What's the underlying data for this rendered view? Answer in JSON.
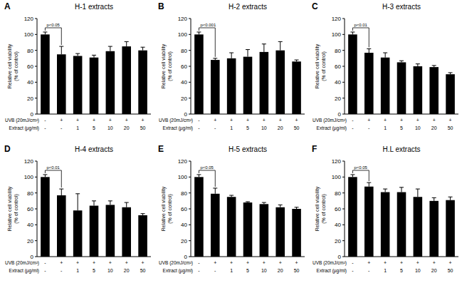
{
  "chart_data": [
    {
      "type": "bar",
      "panel": "A",
      "title": "H-1 extracts",
      "y_label": [
        "Relative cell viability",
        "(% of control)"
      ],
      "x_rows": [
        {
          "label": "UVB (20mJ/cm²)",
          "values": [
            "-",
            "+",
            "+",
            "+",
            "+",
            "+",
            "+"
          ]
        },
        {
          "label": "Extract (µg/ml)",
          "values": [
            "-",
            "-",
            "1",
            "5",
            "10",
            "20",
            "50"
          ]
        }
      ],
      "values": [
        100,
        75,
        73,
        71,
        79,
        85,
        80
      ],
      "errors": [
        3,
        10,
        3,
        3,
        6,
        6,
        4
      ],
      "color": "#000000",
      "ylim": [
        0,
        120
      ],
      "yticks": [
        0,
        20,
        40,
        60,
        80,
        100,
        120
      ],
      "grid": false,
      "annotations": [
        {
          "text": "p<0.05",
          "from": 0,
          "to": 1
        }
      ]
    },
    {
      "type": "bar",
      "panel": "B",
      "title": "H-2 extracts",
      "y_label": [
        "Relative cell viability",
        "(% of control)"
      ],
      "x_rows": [
        {
          "label": "UVB (20mJ/cm²)",
          "values": [
            "-",
            "+",
            "+",
            "+",
            "+",
            "+",
            "+"
          ]
        },
        {
          "label": "Extract (µg/ml)",
          "values": [
            "-",
            "-",
            "1",
            "5",
            "10",
            "20",
            "50"
          ]
        }
      ],
      "values": [
        100,
        68,
        70,
        72,
        78,
        80,
        66
      ],
      "errors": [
        3,
        2,
        7,
        9,
        10,
        11,
        2
      ],
      "color": "#000000",
      "ylim": [
        0,
        120
      ],
      "yticks": [
        0,
        20,
        40,
        60,
        80,
        100,
        120
      ],
      "grid": false,
      "annotations": [
        {
          "text": "p<0.001",
          "from": 0,
          "to": 1
        }
      ]
    },
    {
      "type": "bar",
      "panel": "C",
      "title": "H-3 extracts",
      "y_label": [
        "Relative cell viability",
        "(% of control)"
      ],
      "x_rows": [
        {
          "label": "UVB (20mJ/cm²)",
          "values": [
            "-",
            "+",
            "+",
            "+",
            "+",
            "+",
            "+"
          ]
        },
        {
          "label": "Extract (µg/ml)",
          "values": [
            "-",
            "-",
            "1",
            "5",
            "10",
            "20",
            "50"
          ]
        }
      ],
      "values": [
        100,
        77,
        71,
        65,
        60,
        59,
        50
      ],
      "errors": [
        3,
        5,
        6,
        2,
        3,
        2,
        2
      ],
      "color": "#000000",
      "ylim": [
        0,
        120
      ],
      "yticks": [
        0,
        20,
        40,
        60,
        80,
        100,
        120
      ],
      "grid": false,
      "annotations": [
        {
          "text": "p<0.01",
          "from": 0,
          "to": 1
        }
      ]
    },
    {
      "type": "bar",
      "panel": "D",
      "title": "H-4 extracts",
      "y_label": [
        "Relative cell viability",
        "(% of control)"
      ],
      "x_rows": [
        {
          "label": "UVB (20mJ/cm²)",
          "values": [
            "-",
            "+",
            "+",
            "+",
            "+",
            "+",
            "+"
          ]
        },
        {
          "label": "Extract (µg/ml)",
          "values": [
            "-",
            "-",
            "1",
            "5",
            "10",
            "20",
            "50"
          ]
        }
      ],
      "values": [
        100,
        77,
        58,
        64,
        65,
        62,
        52
      ],
      "errors": [
        3,
        8,
        21,
        6,
        5,
        6,
        2
      ],
      "color": "#000000",
      "ylim": [
        0,
        120
      ],
      "yticks": [
        0,
        20,
        40,
        60,
        80,
        100,
        120
      ],
      "grid": false,
      "annotations": [
        {
          "text": "p<0.01",
          "from": 0,
          "to": 1
        }
      ]
    },
    {
      "type": "bar",
      "panel": "E",
      "title": "H-5 extracts",
      "y_label": [
        "Relative cell viability",
        "(% of control)"
      ],
      "x_rows": [
        {
          "label": "UVB (20mJ/cm²)",
          "values": [
            "-",
            "+",
            "+",
            "+",
            "+",
            "+",
            "+"
          ]
        },
        {
          "label": "Extract (µg/ml)",
          "values": [
            "-",
            "-",
            "1",
            "5",
            "10",
            "20",
            "50"
          ]
        }
      ],
      "values": [
        100,
        79,
        75,
        68,
        66,
        62,
        60
      ],
      "errors": [
        3,
        7,
        2,
        1,
        2,
        3,
        2
      ],
      "color": "#000000",
      "ylim": [
        0,
        120
      ],
      "yticks": [
        0,
        20,
        40,
        60,
        80,
        100,
        120
      ],
      "grid": false,
      "annotations": [
        {
          "text": "p<0.05",
          "from": 0,
          "to": 1
        }
      ]
    },
    {
      "type": "bar",
      "panel": "F",
      "title": "H.L extracts",
      "y_label": [
        "Relative cell viability",
        "(% of control)"
      ],
      "x_rows": [
        {
          "label": "UVB (20mJ/cm²)",
          "values": [
            "-",
            "+",
            "+",
            "+",
            "+",
            "+",
            "+"
          ]
        },
        {
          "label": "Extract (µg/ml)",
          "values": [
            "-",
            "-",
            "1",
            "5",
            "10",
            "20",
            "50"
          ]
        }
      ],
      "values": [
        100,
        88,
        81,
        81,
        75,
        70,
        71
      ],
      "errors": [
        3,
        5,
        4,
        6,
        10,
        4,
        4
      ],
      "color": "#000000",
      "ylim": [
        0,
        120
      ],
      "yticks": [
        0,
        20,
        40,
        60,
        80,
        100,
        120
      ],
      "grid": false,
      "annotations": [
        {
          "text": "p<0.05",
          "from": 0,
          "to": 1
        }
      ]
    }
  ]
}
